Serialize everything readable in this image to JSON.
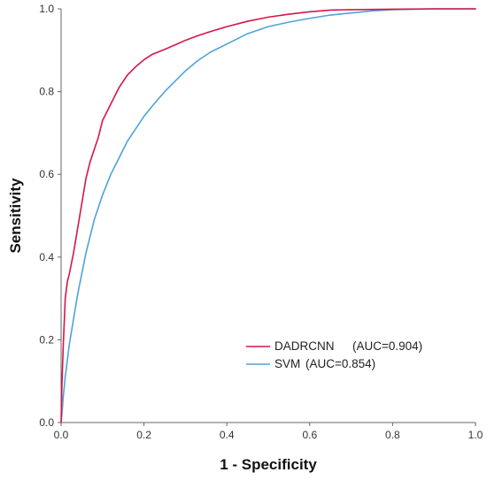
{
  "chart_data": {
    "type": "line",
    "title": "",
    "xlabel": "1 - Specificity",
    "ylabel": "Sensitivity",
    "xlim": [
      0,
      1
    ],
    "ylim": [
      0,
      1
    ],
    "x_ticks": [
      "0.0",
      "0.2",
      "0.4",
      "0.6",
      "0.8",
      "1.0"
    ],
    "y_ticks": [
      "0.0",
      "0.2",
      "0.4",
      "0.6",
      "0.8",
      "1.0"
    ],
    "grid": false,
    "legend_position": "bottom-right",
    "series": [
      {
        "name": "DADRCNN",
        "auc_label": "(AUC=0.904)",
        "color": "#d6154a",
        "x": [
          0,
          0.002,
          0.005,
          0.01,
          0.015,
          0.02,
          0.03,
          0.04,
          0.05,
          0.06,
          0.07,
          0.08,
          0.09,
          0.1,
          0.11,
          0.12,
          0.14,
          0.16,
          0.18,
          0.2,
          0.22,
          0.25,
          0.28,
          0.3,
          0.33,
          0.36,
          0.4,
          0.45,
          0.5,
          0.55,
          0.6,
          0.65,
          0.7,
          0.8,
          0.9,
          1.0
        ],
        "y": [
          0,
          0.09,
          0.18,
          0.3,
          0.34,
          0.36,
          0.41,
          0.47,
          0.53,
          0.59,
          0.63,
          0.66,
          0.69,
          0.73,
          0.75,
          0.77,
          0.81,
          0.84,
          0.86,
          0.877,
          0.89,
          0.902,
          0.915,
          0.924,
          0.935,
          0.945,
          0.957,
          0.97,
          0.98,
          0.987,
          0.993,
          0.997,
          0.998,
          0.999,
          1.0,
          1.0
        ]
      },
      {
        "name": "SVM",
        "auc_label": "(AUC=0.854)",
        "color": "#4da3d9",
        "x": [
          0,
          0.002,
          0.005,
          0.01,
          0.02,
          0.03,
          0.04,
          0.05,
          0.06,
          0.07,
          0.08,
          0.1,
          0.12,
          0.14,
          0.16,
          0.18,
          0.2,
          0.22,
          0.25,
          0.28,
          0.3,
          0.33,
          0.36,
          0.4,
          0.45,
          0.5,
          0.55,
          0.6,
          0.65,
          0.7,
          0.75,
          0.8,
          0.9,
          1.0
        ],
        "y": [
          0,
          0.02,
          0.06,
          0.11,
          0.19,
          0.25,
          0.31,
          0.36,
          0.41,
          0.45,
          0.49,
          0.55,
          0.6,
          0.64,
          0.68,
          0.71,
          0.74,
          0.765,
          0.8,
          0.83,
          0.85,
          0.875,
          0.895,
          0.915,
          0.94,
          0.957,
          0.968,
          0.977,
          0.985,
          0.99,
          0.995,
          0.998,
          1.0,
          1.0
        ]
      }
    ]
  }
}
